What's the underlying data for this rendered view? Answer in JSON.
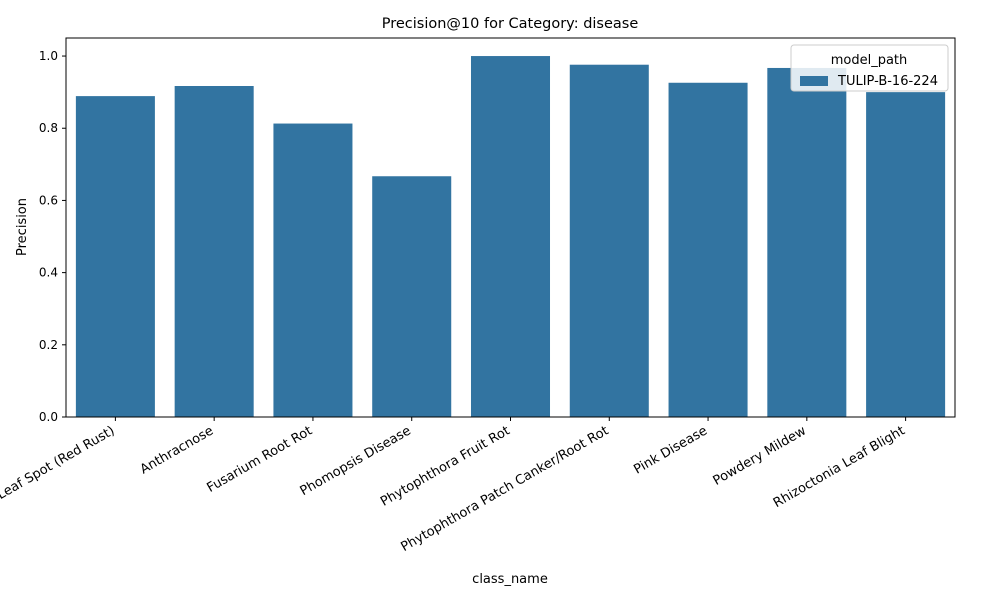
{
  "chart_data": {
    "type": "bar",
    "title": "Precision@10 for Category: disease",
    "xlabel": "class_name",
    "ylabel": "Precision",
    "categories": [
      "Algal Leaf Spot (Red Rust)",
      "Anthracnose",
      "Fusarium Root Rot",
      "Phomopsis Disease",
      "Phytophthora Fruit Rot",
      "Phytophthora Patch Canker/Root Rot",
      "Pink Disease",
      "Powdery Mildew",
      "Rhizoctonia Leaf Blight"
    ],
    "series": [
      {
        "name": "TULIP-B-16-224",
        "values": [
          0.889,
          0.917,
          0.813,
          0.667,
          1.0,
          0.976,
          0.926,
          0.967,
          0.9
        ],
        "color": "#3274a1"
      }
    ],
    "yticks": [
      "0.0",
      "0.2",
      "0.4",
      "0.6",
      "0.8",
      "1.0"
    ],
    "ylim": [
      0,
      1.05
    ],
    "grid": false,
    "legend": {
      "title": "model_path",
      "position": "top-right"
    }
  }
}
